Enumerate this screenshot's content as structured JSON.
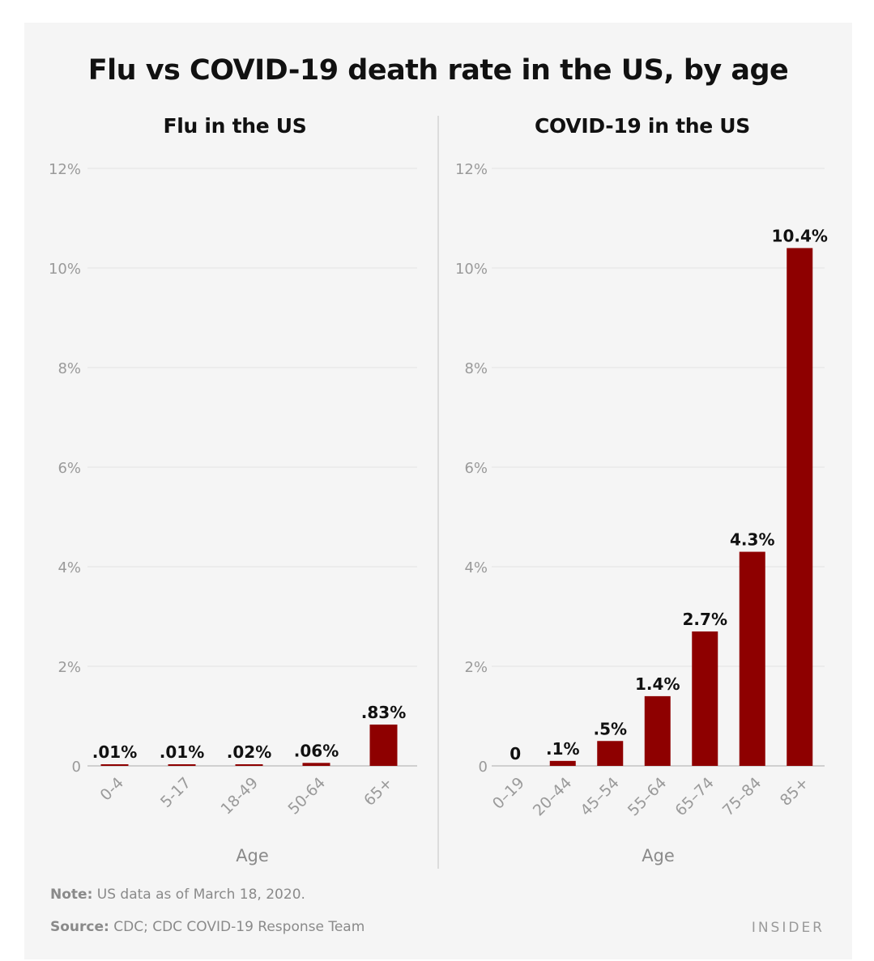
{
  "title": "Flu vs COVID-19 death rate in the US, by age",
  "colors": {
    "bar": "#8e0000",
    "grid": "#e2e2e2",
    "background": "#f5f5f5"
  },
  "chart_data": [
    {
      "type": "bar",
      "title": "Flu in the US",
      "xlabel": "Age",
      "ylabel": "",
      "ylim": [
        0,
        12
      ],
      "yticks": [
        "0",
        "2%",
        "4%",
        "6%",
        "8%",
        "10%",
        "12%"
      ],
      "categories": [
        "0-4",
        "5-17",
        "18-49",
        "50-64",
        "65+"
      ],
      "values": [
        0.01,
        0.01,
        0.02,
        0.06,
        0.83
      ],
      "data_labels": [
        ".01%",
        ".01%",
        ".02%",
        ".06%",
        ".83%"
      ],
      "grid": true
    },
    {
      "type": "bar",
      "title": "COVID-19 in the US",
      "xlabel": "Age",
      "ylabel": "",
      "ylim": [
        0,
        12
      ],
      "yticks": [
        "0",
        "2%",
        "4%",
        "6%",
        "8%",
        "10%",
        "12%"
      ],
      "categories": [
        "0–19",
        "20–44",
        "45–54",
        "55–64",
        "65–74",
        "75–84",
        "85+"
      ],
      "values": [
        0,
        0.1,
        0.5,
        1.4,
        2.7,
        4.3,
        10.4
      ],
      "data_labels": [
        "0",
        ".1%",
        ".5%",
        "1.4%",
        "2.7%",
        "4.3%",
        "10.4%"
      ],
      "grid": true
    }
  ],
  "footer": {
    "note_label": "Note:",
    "note_text": " US data as of March 18, 2020.",
    "source_label": "Source:",
    "source_text": " CDC; CDC COVID-19 Response Team",
    "brand": "INSIDER"
  }
}
